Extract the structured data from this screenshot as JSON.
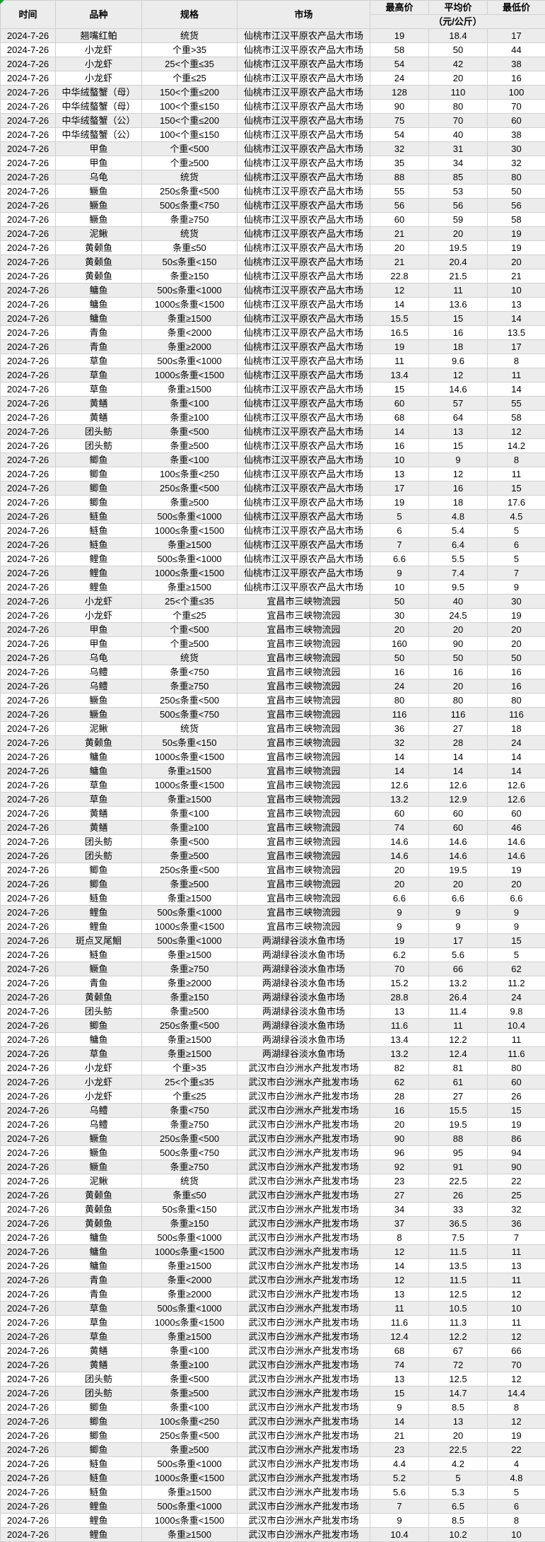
{
  "sheet": {
    "date": "2024-7-26",
    "colors": {
      "row_shade": "#ececec",
      "grid_line": "#d0d0d0",
      "corner_flag_green": "#179b30"
    }
  },
  "header": {
    "time": "时间",
    "variety": "品种",
    "spec": "规格",
    "market": "市场",
    "high": "最高价",
    "avg": "平均价",
    "low": "最低价",
    "unit": "（元/公斤）"
  },
  "markets": [
    "仙桃市江汉平原农产品大市场",
    "宜昌市三峡物流园",
    "两湖绿谷淡水鱼市场",
    "武汉市白沙洲水产批发市场"
  ],
  "rows": [
    [
      "翘嘴红鲌",
      "统货",
      "仙桃市江汉平原农产品大市场",
      "19",
      "18.4",
      "17"
    ],
    [
      "小龙虾",
      "个重>35",
      "仙桃市江汉平原农产品大市场",
      "58",
      "50",
      "44"
    ],
    [
      "小龙虾",
      "25<个重≤35",
      "仙桃市江汉平原农产品大市场",
      "54",
      "42",
      "38"
    ],
    [
      "小龙虾",
      "个重≤25",
      "仙桃市江汉平原农产品大市场",
      "24",
      "20",
      "16"
    ],
    [
      "中华绒螯蟹（母）",
      "150<个重≤200",
      "仙桃市江汉平原农产品大市场",
      "128",
      "110",
      "100"
    ],
    [
      "中华绒螯蟹（母）",
      "100<个重≤150",
      "仙桃市江汉平原农产品大市场",
      "90",
      "80",
      "70"
    ],
    [
      "中华绒螯蟹（公）",
      "150<个重≤200",
      "仙桃市江汉平原农产品大市场",
      "75",
      "70",
      "60"
    ],
    [
      "中华绒螯蟹（公）",
      "100<个重≤150",
      "仙桃市江汉平原农产品大市场",
      "54",
      "40",
      "38"
    ],
    [
      "甲鱼",
      "个重<500",
      "仙桃市江汉平原农产品大市场",
      "32",
      "31",
      "30"
    ],
    [
      "甲鱼",
      "个重≥500",
      "仙桃市江汉平原农产品大市场",
      "35",
      "34",
      "32"
    ],
    [
      "乌龟",
      "统货",
      "仙桃市江汉平原农产品大市场",
      "88",
      "85",
      "80"
    ],
    [
      "鳜鱼",
      "250≤条重<500",
      "仙桃市江汉平原农产品大市场",
      "55",
      "53",
      "50"
    ],
    [
      "鳜鱼",
      "500≤条重<750",
      "仙桃市江汉平原农产品大市场",
      "56",
      "56",
      "56"
    ],
    [
      "鳜鱼",
      "条重≥750",
      "仙桃市江汉平原农产品大市场",
      "60",
      "59",
      "58"
    ],
    [
      "泥鳅",
      "统货",
      "仙桃市江汉平原农产品大市场",
      "21",
      "20",
      "19"
    ],
    [
      "黄颡鱼",
      "条重≤50",
      "仙桃市江汉平原农产品大市场",
      "20",
      "19.5",
      "19"
    ],
    [
      "黄颡鱼",
      "50≤条重<150",
      "仙桃市江汉平原农产品大市场",
      "21",
      "20.4",
      "20"
    ],
    [
      "黄颡鱼",
      "条重≥150",
      "仙桃市江汉平原农产品大市场",
      "22.8",
      "21.5",
      "21"
    ],
    [
      "鳙鱼",
      "500≤条重<1000",
      "仙桃市江汉平原农产品大市场",
      "12",
      "11",
      "10"
    ],
    [
      "鳙鱼",
      "1000≤条重<1500",
      "仙桃市江汉平原农产品大市场",
      "14",
      "13.6",
      "13"
    ],
    [
      "鳙鱼",
      "条重≥1500",
      "仙桃市江汉平原农产品大市场",
      "15.5",
      "15",
      "14"
    ],
    [
      "青鱼",
      "条重<2000",
      "仙桃市江汉平原农产品大市场",
      "16.5",
      "16",
      "13.5"
    ],
    [
      "青鱼",
      "条重≥2000",
      "仙桃市江汉平原农产品大市场",
      "19",
      "18",
      "17"
    ],
    [
      "草鱼",
      "500≤条重<1000",
      "仙桃市江汉平原农产品大市场",
      "11",
      "9.6",
      "8"
    ],
    [
      "草鱼",
      "1000≤条重<1500",
      "仙桃市江汉平原农产品大市场",
      "13.4",
      "12",
      "11"
    ],
    [
      "草鱼",
      "条重≥1500",
      "仙桃市江汉平原农产品大市场",
      "15",
      "14.6",
      "14"
    ],
    [
      "黄鳝",
      "条重<100",
      "仙桃市江汉平原农产品大市场",
      "60",
      "57",
      "55"
    ],
    [
      "黄鳝",
      "条重≥100",
      "仙桃市江汉平原农产品大市场",
      "68",
      "64",
      "58"
    ],
    [
      "团头鲂",
      "条重<500",
      "仙桃市江汉平原农产品大市场",
      "14",
      "13",
      "12"
    ],
    [
      "团头鲂",
      "条重≥500",
      "仙桃市江汉平原农产品大市场",
      "16",
      "15",
      "14.2"
    ],
    [
      "鲫鱼",
      "条重<100",
      "仙桃市江汉平原农产品大市场",
      "10",
      "9",
      "8"
    ],
    [
      "鲫鱼",
      "100≤条重<250",
      "仙桃市江汉平原农产品大市场",
      "13",
      "12",
      "11"
    ],
    [
      "鲫鱼",
      "250≤条重<500",
      "仙桃市江汉平原农产品大市场",
      "17",
      "16",
      "15"
    ],
    [
      "鲫鱼",
      "条重≥500",
      "仙桃市江汉平原农产品大市场",
      "19",
      "18",
      "17.6"
    ],
    [
      "鲢鱼",
      "500≤条重<1000",
      "仙桃市江汉平原农产品大市场",
      "5",
      "4.8",
      "4.5"
    ],
    [
      "鲢鱼",
      "1000≤条重<1500",
      "仙桃市江汉平原农产品大市场",
      "6",
      "5.4",
      "5"
    ],
    [
      "鲢鱼",
      "条重≥1500",
      "仙桃市江汉平原农产品大市场",
      "7",
      "6.4",
      "6"
    ],
    [
      "鲤鱼",
      "500≤条重<1000",
      "仙桃市江汉平原农产品大市场",
      "6.6",
      "5.5",
      "5"
    ],
    [
      "鲤鱼",
      "1000≤条重<1500",
      "仙桃市江汉平原农产品大市场",
      "9",
      "7.4",
      "7"
    ],
    [
      "鲤鱼",
      "条重≥1500",
      "仙桃市江汉平原农产品大市场",
      "10",
      "9.5",
      "9"
    ],
    [
      "小龙虾",
      "25<个重≤35",
      "宜昌市三峡物流园",
      "50",
      "40",
      "30"
    ],
    [
      "小龙虾",
      "个重≤25",
      "宜昌市三峡物流园",
      "30",
      "24.5",
      "19"
    ],
    [
      "甲鱼",
      "个重<500",
      "宜昌市三峡物流园",
      "20",
      "20",
      "20"
    ],
    [
      "甲鱼",
      "个重≥500",
      "宜昌市三峡物流园",
      "160",
      "90",
      "20"
    ],
    [
      "乌龟",
      "统货",
      "宜昌市三峡物流园",
      "50",
      "50",
      "50"
    ],
    [
      "乌鳢",
      "条重<750",
      "宜昌市三峡物流园",
      "16",
      "16",
      "16"
    ],
    [
      "乌鳢",
      "条重≥750",
      "宜昌市三峡物流园",
      "24",
      "20",
      "16"
    ],
    [
      "鳜鱼",
      "250≤条重<500",
      "宜昌市三峡物流园",
      "80",
      "80",
      "80"
    ],
    [
      "鳜鱼",
      "500≤条重<750",
      "宜昌市三峡物流园",
      "116",
      "116",
      "116"
    ],
    [
      "泥鳅",
      "统货",
      "宜昌市三峡物流园",
      "36",
      "27",
      "18"
    ],
    [
      "黄颡鱼",
      "50≤条重<150",
      "宜昌市三峡物流园",
      "32",
      "28",
      "24"
    ],
    [
      "鳙鱼",
      "1000≤条重<1500",
      "宜昌市三峡物流园",
      "14",
      "14",
      "14"
    ],
    [
      "鳙鱼",
      "条重≥1500",
      "宜昌市三峡物流园",
      "14",
      "14",
      "14"
    ],
    [
      "草鱼",
      "1000≤条重<1500",
      "宜昌市三峡物流园",
      "12.6",
      "12.6",
      "12.6"
    ],
    [
      "草鱼",
      "条重≥1500",
      "宜昌市三峡物流园",
      "13.2",
      "12.9",
      "12.6"
    ],
    [
      "黄鳝",
      "条重<100",
      "宜昌市三峡物流园",
      "60",
      "60",
      "60"
    ],
    [
      "黄鳝",
      "条重≥100",
      "宜昌市三峡物流园",
      "74",
      "60",
      "46"
    ],
    [
      "团头鲂",
      "条重<500",
      "宜昌市三峡物流园",
      "14.6",
      "14.6",
      "14.6"
    ],
    [
      "团头鲂",
      "条重≥500",
      "宜昌市三峡物流园",
      "14.6",
      "14.6",
      "14.6"
    ],
    [
      "鲫鱼",
      "250≤条重<500",
      "宜昌市三峡物流园",
      "20",
      "19.5",
      "19"
    ],
    [
      "鲫鱼",
      "条重≥500",
      "宜昌市三峡物流园",
      "20",
      "20",
      "20"
    ],
    [
      "鲢鱼",
      "条重≥1500",
      "宜昌市三峡物流园",
      "6.6",
      "6.6",
      "6.6"
    ],
    [
      "鲤鱼",
      "500≤条重<1000",
      "宜昌市三峡物流园",
      "9",
      "9",
      "9"
    ],
    [
      "鲤鱼",
      "1000≤条重<1500",
      "宜昌市三峡物流园",
      "9",
      "9",
      "9"
    ],
    [
      "斑点叉尾鮰",
      "500≤条重<1000",
      "两湖绿谷淡水鱼市场",
      "19",
      "17",
      "15"
    ],
    [
      "鲢鱼",
      "条重≥1500",
      "两湖绿谷淡水鱼市场",
      "6.2",
      "5.6",
      "5"
    ],
    [
      "鳜鱼",
      "条重≥750",
      "两湖绿谷淡水鱼市场",
      "70",
      "66",
      "62"
    ],
    [
      "青鱼",
      "条重≥2000",
      "两湖绿谷淡水鱼市场",
      "15.2",
      "13.2",
      "11.2"
    ],
    [
      "黄颡鱼",
      "条重≥150",
      "两湖绿谷淡水鱼市场",
      "28.8",
      "26.4",
      "24"
    ],
    [
      "团头鲂",
      "条重≥500",
      "两湖绿谷淡水鱼市场",
      "13",
      "11.4",
      "9.8"
    ],
    [
      "鲫鱼",
      "250≤条重<500",
      "两湖绿谷淡水鱼市场",
      "11.6",
      "11",
      "10.4"
    ],
    [
      "鳙鱼",
      "条重≥1500",
      "两湖绿谷淡水鱼市场",
      "13.4",
      "12.2",
      "11"
    ],
    [
      "草鱼",
      "条重≥1500",
      "两湖绿谷淡水鱼市场",
      "13.2",
      "12.4",
      "11.6"
    ],
    [
      "小龙虾",
      "个重>35",
      "武汉市白沙洲水产批发市场",
      "82",
      "81",
      "80"
    ],
    [
      "小龙虾",
      "25<个重≤35",
      "武汉市白沙洲水产批发市场",
      "62",
      "61",
      "60"
    ],
    [
      "小龙虾",
      "个重≤25",
      "武汉市白沙洲水产批发市场",
      "28",
      "27",
      "26"
    ],
    [
      "乌鳢",
      "条重<750",
      "武汉市白沙洲水产批发市场",
      "16",
      "15.5",
      "15"
    ],
    [
      "乌鳢",
      "条重≥750",
      "武汉市白沙洲水产批发市场",
      "20",
      "19.5",
      "19"
    ],
    [
      "鳜鱼",
      "250≤条重<500",
      "武汉市白沙洲水产批发市场",
      "90",
      "88",
      "86"
    ],
    [
      "鳜鱼",
      "500≤条重<750",
      "武汉市白沙洲水产批发市场",
      "96",
      "95",
      "94"
    ],
    [
      "鳜鱼",
      "条重≥750",
      "武汉市白沙洲水产批发市场",
      "92",
      "91",
      "90"
    ],
    [
      "泥鳅",
      "统货",
      "武汉市白沙洲水产批发市场",
      "23",
      "22.5",
      "22"
    ],
    [
      "黄颡鱼",
      "条重≤50",
      "武汉市白沙洲水产批发市场",
      "27",
      "26",
      "25"
    ],
    [
      "黄颡鱼",
      "50≤条重<150",
      "武汉市白沙洲水产批发市场",
      "34",
      "33",
      "32"
    ],
    [
      "黄颡鱼",
      "条重≥150",
      "武汉市白沙洲水产批发市场",
      "37",
      "36.5",
      "36"
    ],
    [
      "鳙鱼",
      "500≤条重<1000",
      "武汉市白沙洲水产批发市场",
      "8",
      "7.5",
      "7"
    ],
    [
      "鳙鱼",
      "1000≤条重<1500",
      "武汉市白沙洲水产批发市场",
      "12",
      "11.5",
      "11"
    ],
    [
      "鳙鱼",
      "条重≥1500",
      "武汉市白沙洲水产批发市场",
      "14",
      "13.5",
      "13"
    ],
    [
      "青鱼",
      "条重<2000",
      "武汉市白沙洲水产批发市场",
      "12",
      "11.5",
      "11"
    ],
    [
      "青鱼",
      "条重≥2000",
      "武汉市白沙洲水产批发市场",
      "13",
      "12.5",
      "12"
    ],
    [
      "草鱼",
      "500≤条重<1000",
      "武汉市白沙洲水产批发市场",
      "11",
      "10.5",
      "10"
    ],
    [
      "草鱼",
      "1000≤条重<1500",
      "武汉市白沙洲水产批发市场",
      "11.6",
      "11.3",
      "11"
    ],
    [
      "草鱼",
      "条重≥1500",
      "武汉市白沙洲水产批发市场",
      "12.4",
      "12.2",
      "12"
    ],
    [
      "黄鳝",
      "条重<100",
      "武汉市白沙洲水产批发市场",
      "68",
      "67",
      "66"
    ],
    [
      "黄鳝",
      "条重≥100",
      "武汉市白沙洲水产批发市场",
      "74",
      "72",
      "70"
    ],
    [
      "团头鲂",
      "条重<500",
      "武汉市白沙洲水产批发市场",
      "13",
      "12.5",
      "12"
    ],
    [
      "团头鲂",
      "条重≥500",
      "武汉市白沙洲水产批发市场",
      "15",
      "14.7",
      "14.4"
    ],
    [
      "鲫鱼",
      "条重<100",
      "武汉市白沙洲水产批发市场",
      "9",
      "8.5",
      "8"
    ],
    [
      "鲫鱼",
      "100≤条重<250",
      "武汉市白沙洲水产批发市场",
      "14",
      "13",
      "12"
    ],
    [
      "鲫鱼",
      "250≤条重<500",
      "武汉市白沙洲水产批发市场",
      "21",
      "20",
      "19"
    ],
    [
      "鲫鱼",
      "条重≥500",
      "武汉市白沙洲水产批发市场",
      "23",
      "22.5",
      "22"
    ],
    [
      "鲢鱼",
      "500≤条重<1000",
      "武汉市白沙洲水产批发市场",
      "4.4",
      "4.2",
      "4"
    ],
    [
      "鲢鱼",
      "1000≤条重<1500",
      "武汉市白沙洲水产批发市场",
      "5.2",
      "5",
      "4.8"
    ],
    [
      "鲢鱼",
      "条重≥1500",
      "武汉市白沙洲水产批发市场",
      "5.6",
      "5.3",
      "5"
    ],
    [
      "鲤鱼",
      "500≤条重<1000",
      "武汉市白沙洲水产批发市场",
      "7",
      "6.5",
      "6"
    ],
    [
      "鲤鱼",
      "1000≤条重<1500",
      "武汉市白沙洲水产批发市场",
      "9",
      "8.5",
      "8"
    ],
    [
      "鲤鱼",
      "条重≥1500",
      "武汉市白沙洲水产批发市场",
      "10.4",
      "10.2",
      "10"
    ]
  ]
}
